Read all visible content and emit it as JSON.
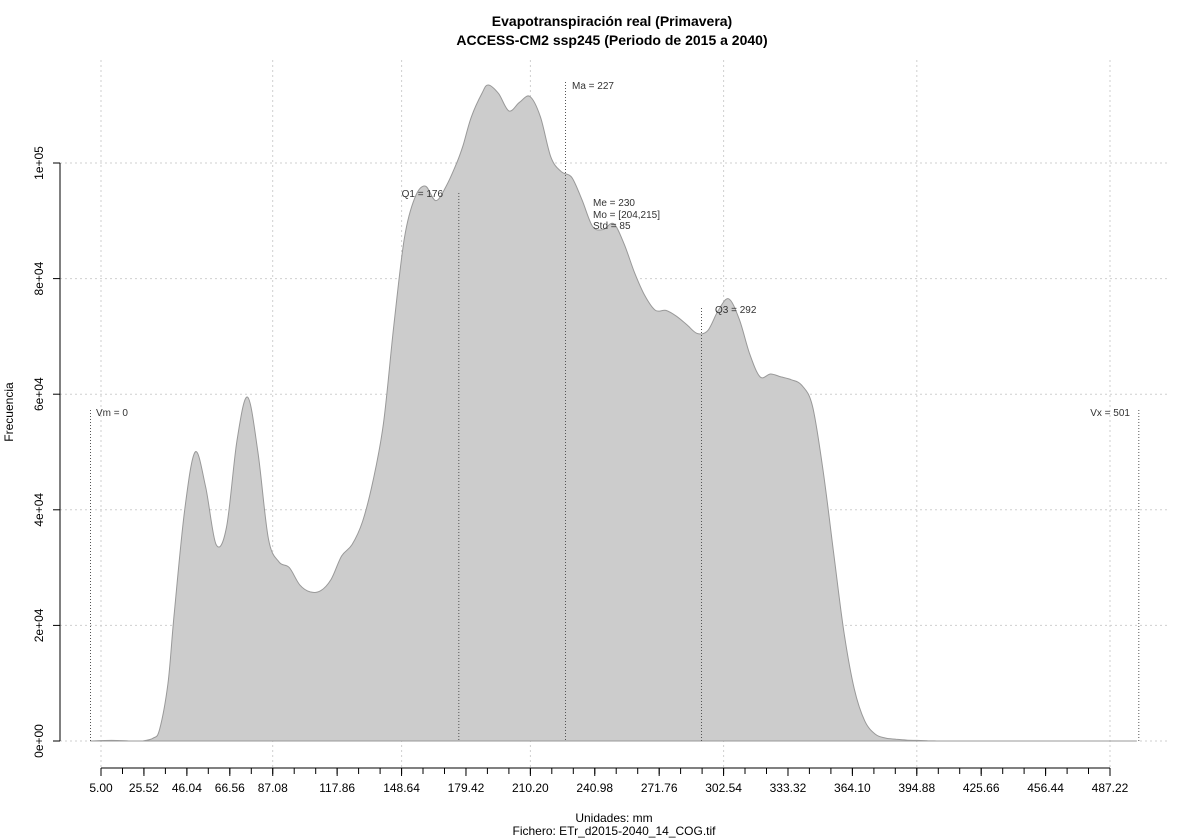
{
  "chart_data": {
    "type": "area",
    "title": "Evapotranspiración real (Primavera)",
    "subtitle": "ACCESS-CM2 ssp245 (Periodo de 2015 a 2040)",
    "xlabel": "Unidades: mm",
    "caption": "Fichero: ETr_d2015-2040_14_COG.tif",
    "ylabel": "Frecuencia",
    "xlim": [
      5.0,
      501
    ],
    "ylim": [
      0,
      114000
    ],
    "x_ticks": [
      5.0,
      25.52,
      46.04,
      66.56,
      87.08,
      117.86,
      148.64,
      179.42,
      210.2,
      240.98,
      271.76,
      302.54,
      333.32,
      364.1,
      394.88,
      425.66,
      456.44,
      487.22
    ],
    "x_tick_labels": [
      "5.00",
      "25.52",
      "46.04",
      "66.56",
      "87.08",
      "117.86",
      "148.64",
      "179.42",
      "210.20",
      "240.98",
      "271.76",
      "302.54",
      "333.32",
      "364.10",
      "394.88",
      "425.66",
      "456.44",
      "487.22"
    ],
    "y_ticks": [
      0,
      20000,
      40000,
      60000,
      80000,
      100000
    ],
    "y_tick_labels": [
      "0e+00",
      "2e+04",
      "4e+04",
      "6e+04",
      "8e+04",
      "1e+05"
    ],
    "grid": true,
    "fill_color": "#cccccc",
    "stroke_color": "#999999",
    "x": [
      0,
      10,
      20,
      25,
      30,
      33,
      37,
      40,
      45,
      50,
      55,
      60,
      65,
      70,
      75,
      80,
      85,
      90,
      95,
      100,
      105,
      110,
      115,
      120,
      125,
      130,
      135,
      140,
      145,
      150,
      155,
      160,
      165,
      170,
      175,
      178,
      182,
      187,
      190,
      195,
      200,
      205,
      210,
      215,
      220,
      225,
      230,
      235,
      240,
      245,
      250,
      255,
      260,
      265,
      270,
      275,
      280,
      285,
      290,
      295,
      300,
      305,
      310,
      315,
      320,
      325,
      330,
      335,
      340,
      345,
      350,
      355,
      360,
      365,
      370,
      375,
      380,
      385,
      390,
      395,
      400,
      405,
      410,
      420,
      450,
      480,
      500
    ],
    "y": [
      0,
      100,
      0,
      0,
      500,
      2000,
      10000,
      22000,
      40000,
      50000,
      44000,
      34000,
      37000,
      52000,
      59500,
      50000,
      35000,
      31000,
      30000,
      27000,
      25800,
      26000,
      28000,
      32000,
      34000,
      38000,
      45000,
      55000,
      72000,
      87000,
      94000,
      96000,
      93500,
      96000,
      100000,
      103000,
      108000,
      112000,
      113500,
      112000,
      109000,
      110500,
      111500,
      108000,
      101000,
      98500,
      97500,
      93500,
      89000,
      88500,
      89500,
      86000,
      81000,
      77000,
      74500,
      74500,
      73500,
      72000,
      70500,
      71000,
      74500,
      76500,
      73000,
      67000,
      63000,
      63500,
      63000,
      62500,
      61500,
      58000,
      47000,
      33000,
      19000,
      9000,
      3500,
      1200,
      500,
      300,
      150,
      100,
      60,
      0,
      0,
      0,
      0,
      0,
      0
    ],
    "annotations": {
      "vm": "Vm = 0",
      "vx": "Vx = 501",
      "q1": "Q1 = 176",
      "q3": "Q3 = 292",
      "ma": "Ma = 227",
      "me": "Me = 230",
      "mo": "Mo = [204,215]",
      "std": "Std = 85"
    },
    "markers": {
      "vm": 0,
      "vx": 501,
      "q1": 176,
      "ma": 227,
      "q3": 292
    }
  }
}
